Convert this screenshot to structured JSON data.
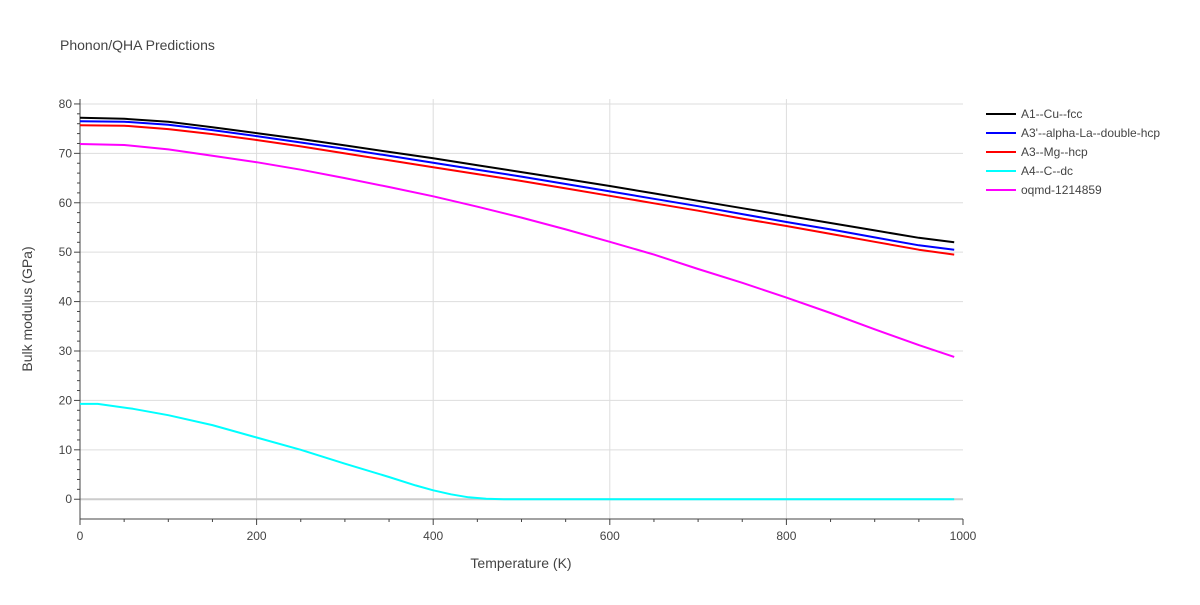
{
  "chart_data": {
    "type": "line",
    "title": "Phonon/QHA Predictions",
    "xlabel": "Temperature (K)",
    "ylabel": "Bulk modulus (GPa)",
    "xlim": [
      0,
      1000
    ],
    "ylim": [
      -4,
      81
    ],
    "x_ticks": [
      0,
      200,
      400,
      600,
      800,
      1000
    ],
    "y_ticks": [
      0,
      10,
      20,
      30,
      40,
      50,
      60,
      70,
      80
    ],
    "grid": true,
    "legend_position": "top-right",
    "series": [
      {
        "name": "A1--Cu--fcc",
        "color": "#000000",
        "points": [
          [
            0,
            77.2
          ],
          [
            50,
            77.0
          ],
          [
            100,
            76.4
          ],
          [
            150,
            75.3
          ],
          [
            200,
            74.1
          ],
          [
            250,
            72.9
          ],
          [
            300,
            71.6
          ],
          [
            350,
            70.3
          ],
          [
            400,
            69.0
          ],
          [
            450,
            67.6
          ],
          [
            500,
            66.2
          ],
          [
            550,
            64.8
          ],
          [
            600,
            63.4
          ],
          [
            650,
            61.9
          ],
          [
            700,
            60.4
          ],
          [
            750,
            58.9
          ],
          [
            800,
            57.4
          ],
          [
            850,
            55.9
          ],
          [
            900,
            54.4
          ],
          [
            950,
            52.9
          ],
          [
            990,
            52.0
          ]
        ]
      },
      {
        "name": "A3'--alpha-La--double-hcp",
        "color": "#0000ff",
        "points": [
          [
            0,
            76.5
          ],
          [
            50,
            76.4
          ],
          [
            100,
            75.8
          ],
          [
            150,
            74.7
          ],
          [
            200,
            73.5
          ],
          [
            250,
            72.2
          ],
          [
            300,
            70.9
          ],
          [
            350,
            69.5
          ],
          [
            400,
            68.1
          ],
          [
            450,
            66.7
          ],
          [
            500,
            65.3
          ],
          [
            550,
            63.8
          ],
          [
            600,
            62.3
          ],
          [
            650,
            60.8
          ],
          [
            700,
            59.3
          ],
          [
            750,
            57.7
          ],
          [
            800,
            56.1
          ],
          [
            850,
            54.6
          ],
          [
            900,
            53.0
          ],
          [
            950,
            51.4
          ],
          [
            990,
            50.5
          ]
        ]
      },
      {
        "name": "A3--Mg--hcp",
        "color": "#ff0000",
        "points": [
          [
            0,
            75.7
          ],
          [
            50,
            75.6
          ],
          [
            100,
            74.9
          ],
          [
            150,
            73.9
          ],
          [
            200,
            72.7
          ],
          [
            250,
            71.4
          ],
          [
            300,
            70.0
          ],
          [
            350,
            68.6
          ],
          [
            400,
            67.2
          ],
          [
            450,
            65.8
          ],
          [
            500,
            64.4
          ],
          [
            550,
            62.9
          ],
          [
            600,
            61.4
          ],
          [
            650,
            59.9
          ],
          [
            700,
            58.4
          ],
          [
            750,
            56.8
          ],
          [
            800,
            55.3
          ],
          [
            850,
            53.7
          ],
          [
            900,
            52.1
          ],
          [
            950,
            50.5
          ],
          [
            990,
            49.5
          ]
        ]
      },
      {
        "name": "A4--C--dc",
        "color": "#00ffff",
        "points": [
          [
            0,
            19.3
          ],
          [
            20,
            19.3
          ],
          [
            60,
            18.3
          ],
          [
            100,
            17.0
          ],
          [
            150,
            15.0
          ],
          [
            200,
            12.5
          ],
          [
            250,
            10.0
          ],
          [
            300,
            7.2
          ],
          [
            350,
            4.5
          ],
          [
            380,
            2.8
          ],
          [
            400,
            1.8
          ],
          [
            420,
            1.0
          ],
          [
            440,
            0.4
          ],
          [
            460,
            0.1
          ],
          [
            480,
            0.0
          ],
          [
            500,
            0.0
          ],
          [
            600,
            0.0
          ],
          [
            700,
            0.0
          ],
          [
            800,
            0.0
          ],
          [
            900,
            0.0
          ],
          [
            990,
            0.0
          ]
        ]
      },
      {
        "name": "oqmd-1214859",
        "color": "#ff00ff",
        "points": [
          [
            0,
            71.9
          ],
          [
            50,
            71.7
          ],
          [
            100,
            70.8
          ],
          [
            150,
            69.5
          ],
          [
            200,
            68.2
          ],
          [
            250,
            66.7
          ],
          [
            300,
            65.0
          ],
          [
            350,
            63.2
          ],
          [
            400,
            61.3
          ],
          [
            450,
            59.2
          ],
          [
            500,
            57.0
          ],
          [
            550,
            54.6
          ],
          [
            600,
            52.1
          ],
          [
            650,
            49.5
          ],
          [
            700,
            46.6
          ],
          [
            750,
            43.8
          ],
          [
            800,
            40.8
          ],
          [
            850,
            37.7
          ],
          [
            900,
            34.4
          ],
          [
            950,
            31.2
          ],
          [
            990,
            28.8
          ]
        ]
      }
    ]
  }
}
